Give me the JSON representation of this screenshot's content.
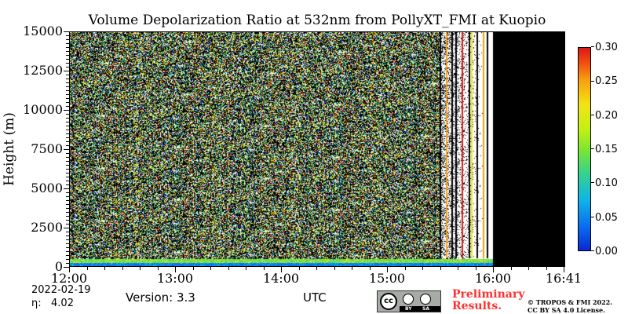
{
  "chart_data": {
    "type": "heatmap",
    "title": "Volume Depolarization Ratio at 532nm from PollyXT_FMI at Kuopio",
    "ylabel": "Height (m)",
    "xlabel": "UTC",
    "x_range": [
      "12:00",
      "16:41"
    ],
    "y_range": [
      0,
      15000
    ],
    "x_ticks": [
      "12:00",
      "13:00",
      "14:00",
      "15:00",
      "16:00",
      "16:41"
    ],
    "y_ticks": [
      "0",
      "2500",
      "5000",
      "7500",
      "10000",
      "12500",
      "15000"
    ],
    "colorbar": {
      "min": 0.0,
      "max": 0.3,
      "ticks": [
        "0.00",
        "0.05",
        "0.10",
        "0.15",
        "0.20",
        "0.25",
        "0.30"
      ]
    },
    "features": {
      "noise_region_end_utc": "15:30",
      "sparse_region_end_utc": "15:55",
      "no_data_start_utc": "16:00",
      "boundary_layer_top_m": 500
    }
  },
  "footer": {
    "date": "2022-02-19",
    "eta_label": "η:",
    "eta_value": "4.02",
    "version": "Version: 3.3",
    "preliminary_line1": "Preliminary",
    "preliminary_line2": "Results.",
    "copyright_line1": "© TROPOS & FMI 2022.",
    "copyright_line2": "CC BY SA 4.0 License.",
    "cc_by": "BY",
    "cc_sa": "SA",
    "cc_mark": "cc"
  },
  "colors": {
    "no_data": "#000000",
    "background": "#ffffff",
    "preliminary": "#ff3030"
  }
}
